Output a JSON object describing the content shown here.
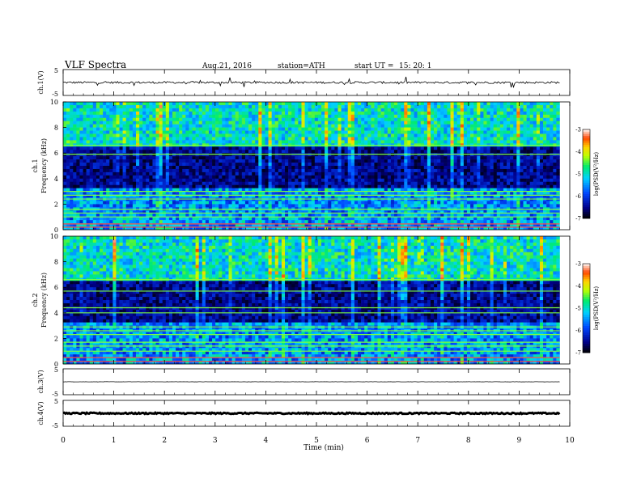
{
  "header": {
    "title": "VLF  Spectra",
    "date": "Aug.21, 2016",
    "station": "station=ATH",
    "start_label": "start  UT  =",
    "start_time": "15: 20: 1"
  },
  "chart_data": [
    {
      "type": "line",
      "panel": "ch1-waveform",
      "ylabel": "ch.1(V)",
      "ylim": [
        -5,
        5
      ],
      "yticks": [
        "5",
        "-5"
      ],
      "xlim": [
        0,
        10
      ],
      "trace_mean": 0,
      "trace_amplitude": 0.4,
      "color": "#000000"
    },
    {
      "type": "heatmap",
      "panel": "ch1-spectrogram",
      "ylabel_ch": "ch.1",
      "ylabel": "Frequency  (kHz)",
      "ylim": [
        0,
        10
      ],
      "yticks": [
        "0",
        "2",
        "4",
        "6",
        "8",
        "10"
      ],
      "xlim": [
        0,
        9.8
      ],
      "bands_khz": [
        0.2,
        0.45,
        1.0,
        1.3,
        1.6,
        2.4,
        2.7,
        3.0,
        5.9,
        6.6
      ],
      "colorbar": {
        "label": "log(PSD(V²/Hz)",
        "range": [
          -7,
          -3
        ],
        "ticks": [
          "-3",
          "-4",
          "-5",
          "-6",
          "-7"
        ]
      }
    },
    {
      "type": "heatmap",
      "panel": "ch2-spectrogram",
      "ylabel_ch": "ch.2",
      "ylabel": "Frequency  (kHz)",
      "ylim": [
        0,
        10
      ],
      "yticks": [
        "0",
        "2",
        "4",
        "6",
        "8",
        "10"
      ],
      "xlim": [
        0,
        9.8
      ],
      "bands_khz": [
        0.2,
        0.5,
        1.0,
        1.4,
        1.7,
        2.3,
        2.6,
        2.9,
        4.0,
        4.4,
        5.7,
        6.6
      ],
      "colorbar": {
        "label": "log(PSD(V²/Hz)",
        "range": [
          -7,
          -3
        ],
        "ticks": [
          "-3",
          "-4",
          "-5",
          "-6",
          "-7"
        ]
      }
    },
    {
      "type": "line",
      "panel": "ch3-waveform",
      "ylabel": "ch.3(V)",
      "ylim": [
        -5,
        5
      ],
      "yticks": [
        "5",
        "-5"
      ],
      "xlim": [
        0,
        10
      ],
      "trace_mean": 0,
      "trace_amplitude": 0.05,
      "color": "#000000"
    },
    {
      "type": "line",
      "panel": "ch4-waveform",
      "ylabel": "ch.4(V)",
      "ylim": [
        -5,
        5
      ],
      "yticks": [
        "5",
        "-5"
      ],
      "xlim": [
        0,
        10
      ],
      "trace_mean": 0,
      "trace_amplitude": 0.25,
      "color": "#000000"
    }
  ],
  "x_axis": {
    "label": "Time  (min)",
    "ticks": [
      "0",
      "1",
      "2",
      "3",
      "4",
      "5",
      "6",
      "7",
      "8",
      "9",
      "10"
    ],
    "range": [
      0,
      10
    ]
  }
}
